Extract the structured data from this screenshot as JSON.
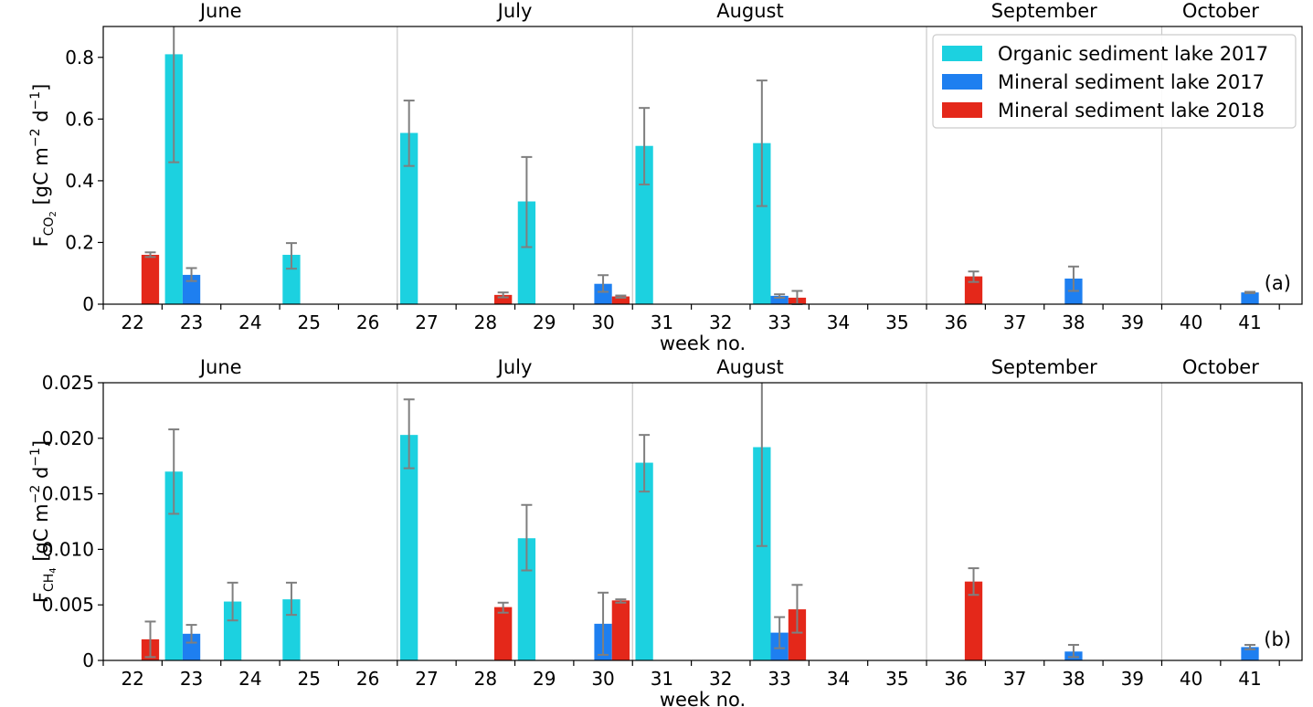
{
  "colors": {
    "organic_2017": "#1cd1e0",
    "mineral_2017": "#1e7ff0",
    "mineral_2018": "#e4281a",
    "error_bar": "#7f7f7f",
    "month_divider": "#c8c8c8"
  },
  "legend": {
    "placement": "top-right of panel (a)",
    "items": [
      {
        "key": "organic_2017",
        "label": "Organic sediment lake 2017"
      },
      {
        "key": "mineral_2017",
        "label": "Mineral sediment lake 2017"
      },
      {
        "key": "mineral_2018",
        "label": "Mineral sediment lake 2018"
      }
    ]
  },
  "chart_data": [
    {
      "type": "bar",
      "panel_tag": "(a)",
      "title": "",
      "xlabel": "week no.",
      "ylabel_main": "F",
      "ylabel_sub": "CO",
      "ylabel_subsub": "2",
      "ylabel_rest": " [gC m",
      "ylabel_exp1": "−2",
      "ylabel_mid": " d",
      "ylabel_exp2": "−1",
      "ylabel_end": "]",
      "weeks": [
        22,
        23,
        24,
        25,
        26,
        27,
        28,
        29,
        30,
        31,
        32,
        33,
        34,
        35,
        36,
        37,
        38,
        39,
        40,
        41
      ],
      "ylim": [
        0,
        0.9
      ],
      "yticks": [
        0,
        0.2,
        0.4,
        0.6,
        0.8
      ],
      "ytick_labels": [
        "0",
        "0.2",
        "0.4",
        "0.6",
        "0.8"
      ],
      "months": [
        {
          "label": "June",
          "center_week": 23.5
        },
        {
          "label": "July",
          "center_week": 28.5
        },
        {
          "label": "August",
          "center_week": 32.5
        },
        {
          "label": "September",
          "center_week": 37.5
        },
        {
          "label": "October",
          "center_week": 40.5
        }
      ],
      "month_dividers_week": [
        26.5,
        30.5,
        35.5,
        39.5
      ],
      "series": [
        {
          "key": "organic_2017",
          "name": "Organic sediment lake 2017",
          "offset": -0.3,
          "points": [
            {
              "week": 23,
              "value": 0.81,
              "err_low": 0.46,
              "err_high": 0.92
            },
            {
              "week": 25,
              "value": 0.16,
              "err_low": 0.115,
              "err_high": 0.198
            },
            {
              "week": 27,
              "value": 0.555,
              "err_low": 0.448,
              "err_high": 0.66
            },
            {
              "week": 29,
              "value": 0.333,
              "err_low": 0.185,
              "err_high": 0.477
            },
            {
              "week": 31,
              "value": 0.513,
              "err_low": 0.388,
              "err_high": 0.636
            },
            {
              "week": 33,
              "value": 0.522,
              "err_low": 0.318,
              "err_high": 0.725
            }
          ]
        },
        {
          "key": "mineral_2017",
          "name": "Mineral sediment lake 2017",
          "offset": 0.0,
          "points": [
            {
              "week": 23,
              "value": 0.095,
              "err_low": 0.075,
              "err_high": 0.117
            },
            {
              "week": 30,
              "value": 0.066,
              "err_low": 0.04,
              "err_high": 0.094
            },
            {
              "week": 33,
              "value": 0.027,
              "err_low": 0.021,
              "err_high": 0.032
            },
            {
              "week": 38,
              "value": 0.083,
              "err_low": 0.043,
              "err_high": 0.122
            },
            {
              "week": 41,
              "value": 0.038,
              "err_low": 0.036,
              "err_high": 0.04
            }
          ]
        },
        {
          "key": "mineral_2018",
          "name": "Mineral sediment lake 2018",
          "offset": 0.3,
          "points": [
            {
              "week": 22,
              "value": 0.16,
              "err_low": 0.153,
              "err_high": 0.168
            },
            {
              "week": 28,
              "value": 0.03,
              "err_low": 0.022,
              "err_high": 0.038
            },
            {
              "week": 30,
              "value": 0.025,
              "err_low": 0.021,
              "err_high": 0.028
            },
            {
              "week": 33,
              "value": 0.021,
              "err_low": 0.0,
              "err_high": 0.043
            },
            {
              "week": 36,
              "value": 0.09,
              "err_low": 0.072,
              "err_high": 0.106
            }
          ]
        }
      ]
    },
    {
      "type": "bar",
      "panel_tag": "(b)",
      "title": "",
      "xlabel": "week no.",
      "ylabel_main": "F",
      "ylabel_sub": "CH",
      "ylabel_subsub": "4",
      "ylabel_rest": " [gC m",
      "ylabel_exp1": "−2",
      "ylabel_mid": " d",
      "ylabel_exp2": "−1",
      "ylabel_end": "]",
      "weeks": [
        22,
        23,
        24,
        25,
        26,
        27,
        28,
        29,
        30,
        31,
        32,
        33,
        34,
        35,
        36,
        37,
        38,
        39,
        40,
        41
      ],
      "ylim": [
        0,
        0.025
      ],
      "yticks": [
        0,
        0.005,
        0.01,
        0.015,
        0.02,
        0.025
      ],
      "ytick_labels": [
        "0",
        "0.005",
        "0.010",
        "0.015",
        "0.020",
        "0.025"
      ],
      "months": [
        {
          "label": "June",
          "center_week": 23.5
        },
        {
          "label": "July",
          "center_week": 28.5
        },
        {
          "label": "August",
          "center_week": 32.5
        },
        {
          "label": "September",
          "center_week": 37.5
        },
        {
          "label": "October",
          "center_week": 40.5
        }
      ],
      "month_dividers_week": [
        26.5,
        30.5,
        35.5,
        39.5
      ],
      "series": [
        {
          "key": "organic_2017",
          "name": "Organic sediment lake 2017",
          "offset": -0.3,
          "points": [
            {
              "week": 23,
              "value": 0.017,
              "err_low": 0.0132,
              "err_high": 0.0208
            },
            {
              "week": 24,
              "value": 0.0053,
              "err_low": 0.0036,
              "err_high": 0.007
            },
            {
              "week": 25,
              "value": 0.0055,
              "err_low": 0.0041,
              "err_high": 0.007
            },
            {
              "week": 27,
              "value": 0.0203,
              "err_low": 0.0173,
              "err_high": 0.0235
            },
            {
              "week": 29,
              "value": 0.011,
              "err_low": 0.0081,
              "err_high": 0.014
            },
            {
              "week": 31,
              "value": 0.0178,
              "err_low": 0.0152,
              "err_high": 0.0203
            },
            {
              "week": 33,
              "value": 0.0192,
              "err_low": 0.0103,
              "err_high": 0.026
            }
          ]
        },
        {
          "key": "mineral_2017",
          "name": "Mineral sediment lake 2017",
          "offset": 0.0,
          "points": [
            {
              "week": 23,
              "value": 0.0024,
              "err_low": 0.0016,
              "err_high": 0.0032
            },
            {
              "week": 30,
              "value": 0.0033,
              "err_low": 0.0005,
              "err_high": 0.0061
            },
            {
              "week": 33,
              "value": 0.0025,
              "err_low": 0.0011,
              "err_high": 0.0039
            },
            {
              "week": 38,
              "value": 0.0008,
              "err_low": 0.0003,
              "err_high": 0.0014
            },
            {
              "week": 41,
              "value": 0.0012,
              "err_low": 0.001,
              "err_high": 0.0014
            }
          ]
        },
        {
          "key": "mineral_2018",
          "name": "Mineral sediment lake 2018",
          "offset": 0.3,
          "points": [
            {
              "week": 22,
              "value": 0.0019,
              "err_low": 0.0003,
              "err_high": 0.0035
            },
            {
              "week": 28,
              "value": 0.0048,
              "err_low": 0.0043,
              "err_high": 0.0052
            },
            {
              "week": 30,
              "value": 0.0054,
              "err_low": 0.0052,
              "err_high": 0.0055
            },
            {
              "week": 33,
              "value": 0.0046,
              "err_low": 0.0025,
              "err_high": 0.0068
            },
            {
              "week": 36,
              "value": 0.0071,
              "err_low": 0.0059,
              "err_high": 0.0083
            }
          ]
        }
      ]
    }
  ]
}
